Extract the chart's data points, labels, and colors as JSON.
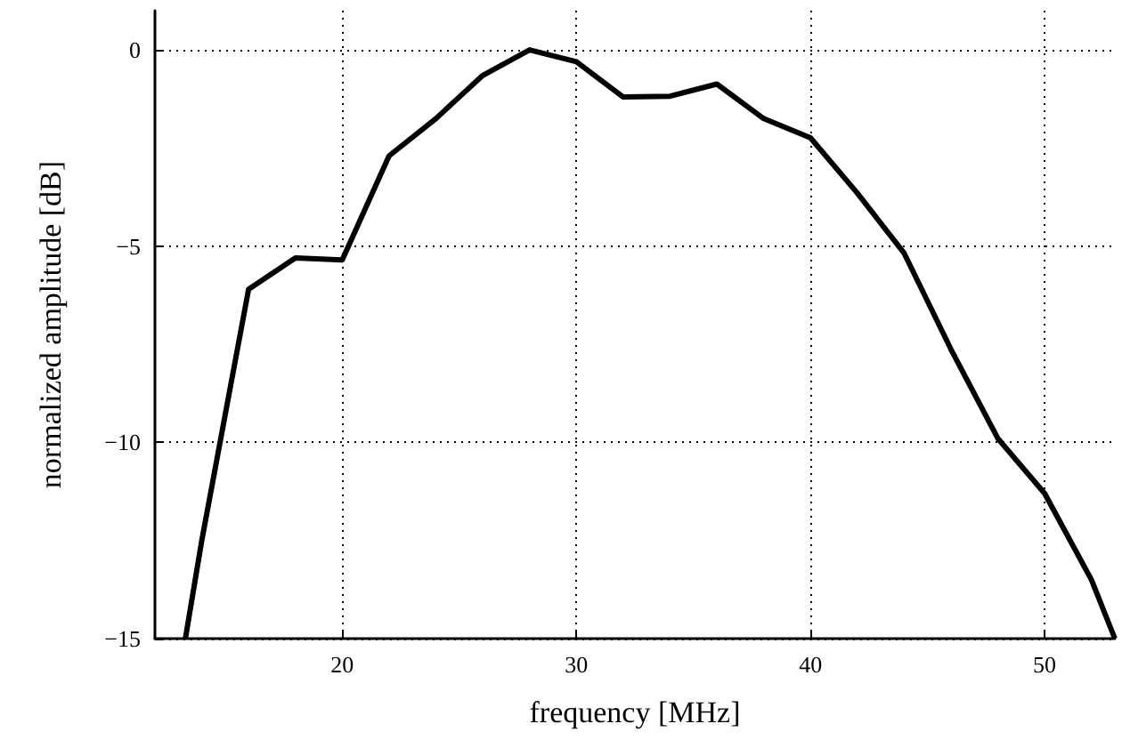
{
  "chart_data": {
    "type": "line",
    "xlabel": "frequency [MHz]",
    "ylabel": "normalized amplitude [dB]",
    "x": [
      13.3,
      14,
      16,
      18,
      20,
      22,
      24,
      26,
      28,
      30,
      32,
      34,
      36,
      38,
      40,
      42,
      44,
      46,
      48,
      50,
      52,
      53
    ],
    "series": [
      {
        "color": "#000000",
        "values": [
          -15,
          -12.5,
          -6.1,
          -5.3,
          -5.35,
          -2.7,
          -1.75,
          -0.65,
          0,
          -0.3,
          -1.2,
          -1.18,
          -0.87,
          -1.75,
          -2.24,
          -3.65,
          -5.18,
          -7.63,
          -9.9,
          -11.3,
          -13.5,
          -15
        ]
      }
    ],
    "xlim": [
      12,
      53
    ],
    "xticks": [
      20,
      30,
      40,
      50
    ],
    "ylim": [
      -15,
      1
    ],
    "yticks": [
      -15,
      -10,
      -5,
      0
    ],
    "grid": true,
    "marker": "none",
    "line_style": "solid"
  }
}
